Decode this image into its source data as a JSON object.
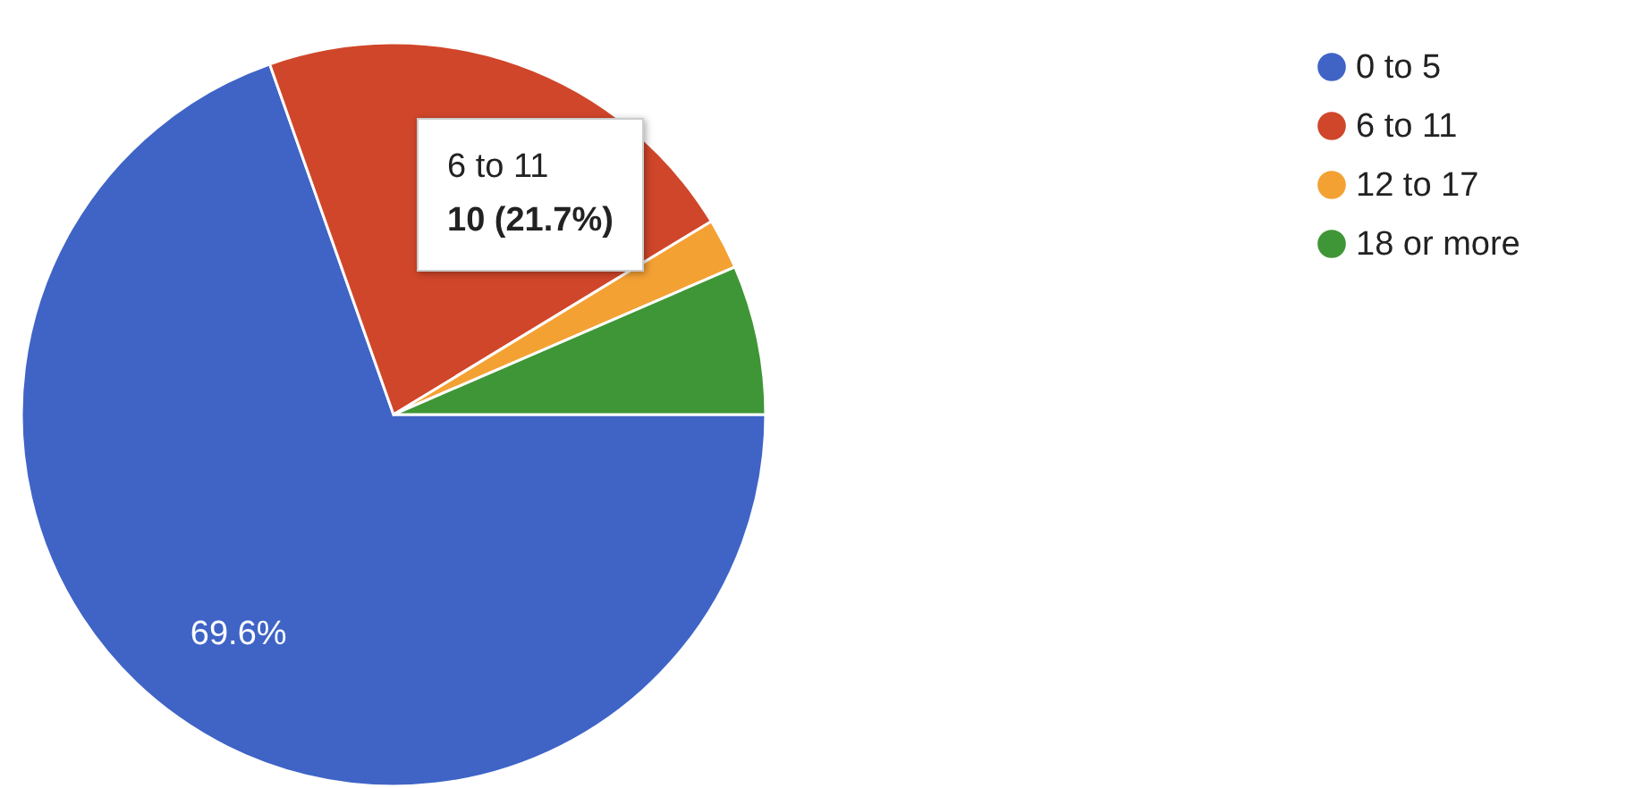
{
  "chart_data": {
    "type": "pie",
    "categories": [
      "0 to 5",
      "6 to 11",
      "12 to 17",
      "18 or more"
    ],
    "values": [
      69.6,
      21.7,
      2.2,
      6.5
    ],
    "colors": [
      "#3f64c6",
      "#d0462a",
      "#f4a134",
      "#3f9636"
    ],
    "value_labels": [
      "69.6%",
      null,
      null,
      null
    ],
    "annotations": [
      "6 to 11",
      "10 (21.7%)"
    ],
    "legend": "top right"
  }
}
